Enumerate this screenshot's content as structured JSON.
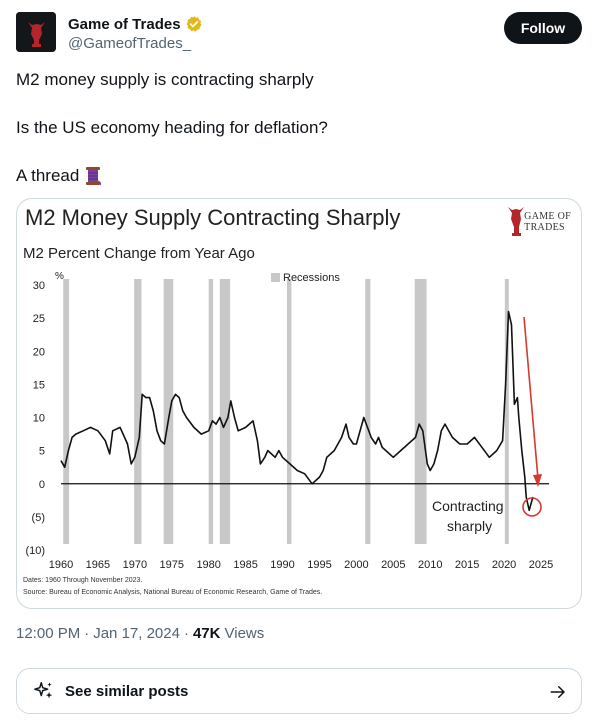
{
  "author": {
    "name": "Game of Trades",
    "handle": "@GameofTrades_",
    "verified": true,
    "follow_label": "Follow"
  },
  "tweet": {
    "line1": "M2 money supply is contracting sharply",
    "line2": "Is the US economy heading for deflation?",
    "line3": "A thread",
    "emoji": "thread-spool-icon"
  },
  "media": {
    "logo_line1": "GAME OF",
    "logo_line2": "TRADES",
    "footnote_dates": "Dates: 1960 Through November 2023.",
    "footnote_source": "Source: Bureau of Economic Analysis, National Bureau of Economic Research, Game of Trades."
  },
  "chart_data": {
    "type": "line",
    "title": "M2 Money Supply Contracting Sharply",
    "subtitle": "M2 Percent Change from Year Ago",
    "y_unit": "%",
    "ylim": [
      -10,
      30
    ],
    "xlim": [
      1960,
      2025
    ],
    "y_ticks": [
      "30",
      "25",
      "20",
      "15",
      "10",
      "5",
      "0",
      "(5)",
      "(10)"
    ],
    "y_tick_values": [
      30,
      25,
      20,
      15,
      10,
      5,
      0,
      -5,
      -10
    ],
    "x_ticks": [
      "1960",
      "1965",
      "1970",
      "1975",
      "1980",
      "1985",
      "1990",
      "1995",
      "2000",
      "2005",
      "2010",
      "2015",
      "2020",
      "2025"
    ],
    "legend": "Recessions",
    "annotation": [
      "Contracting",
      "sharply"
    ],
    "recessions": [
      [
        1960.3,
        1961.1
      ],
      [
        1969.9,
        1970.9
      ],
      [
        1973.9,
        1975.2
      ],
      [
        1980.0,
        1980.6
      ],
      [
        1981.5,
        1982.9
      ],
      [
        1990.6,
        1991.2
      ],
      [
        2001.2,
        2001.9
      ],
      [
        2007.9,
        2009.5
      ],
      [
        2020.1,
        2020.4
      ]
    ],
    "series": [
      {
        "values_x": [
          1960,
          1960.5,
          1961,
          1961.5,
          1962,
          1963,
          1964,
          1965,
          1966,
          1966.6,
          1967,
          1968,
          1969,
          1969.5,
          1970,
          1970.6,
          1971,
          1971.5,
          1972,
          1972.5,
          1973,
          1973.5,
          1974,
          1974.6,
          1975,
          1975.5,
          1976,
          1976.5,
          1977,
          1978,
          1979,
          1980,
          1980.5,
          1981,
          1981.5,
          1982,
          1982.6,
          1983,
          1983.5,
          1984,
          1985,
          1985.5,
          1986,
          1986.6,
          1987,
          1987.6,
          1988,
          1989,
          1989.5,
          1990,
          1991,
          1992,
          1993,
          1994,
          1995,
          1995.5,
          1996,
          1997,
          1998,
          1998.6,
          1999,
          1999.6,
          2000,
          2001,
          2001.5,
          2002,
          2002.6,
          2003,
          2003.5,
          2004,
          2005,
          2006,
          2007,
          2008,
          2008.5,
          2009,
          2009.6,
          2010,
          2010.5,
          2011,
          2011.5,
          2012,
          2013,
          2014,
          2015,
          2016,
          2017,
          2018,
          2019,
          2019.8,
          2020.2,
          2020.6,
          2021,
          2021.4,
          2021.8,
          2022,
          2022.4,
          2022.8,
          2023,
          2023.4,
          2023.9
        ],
        "values_y": [
          3.5,
          2.5,
          5,
          7,
          7.5,
          8,
          8.5,
          8,
          6.5,
          4.5,
          8,
          8.5,
          6,
          3,
          4,
          7,
          13.5,
          13,
          13,
          11,
          8,
          6.5,
          6,
          10,
          12.5,
          13.5,
          13,
          11,
          10,
          8.5,
          7.5,
          8,
          9.5,
          9,
          10,
          8.5,
          10,
          12.5,
          10,
          8,
          8.5,
          9,
          9.5,
          6.5,
          3,
          4,
          5,
          4,
          5,
          4,
          3,
          2,
          1.5,
          0,
          1,
          2,
          4,
          5,
          7,
          9,
          7,
          6,
          6,
          10,
          8.5,
          7,
          6,
          7,
          5.5,
          5,
          4,
          5,
          6,
          7,
          9,
          8,
          3,
          2,
          3,
          5,
          8,
          9,
          7,
          6,
          6,
          7,
          5.5,
          4,
          5,
          6.5,
          15,
          26,
          24,
          12,
          13,
          10,
          5,
          1,
          -2,
          -4,
          -2
        ]
      }
    ]
  },
  "post_meta": {
    "time": "12:00 PM",
    "separator": "·",
    "date": "Jan 17, 2024",
    "views_count": "47K",
    "views_label": "Views"
  },
  "similar_posts": {
    "label": "See similar posts",
    "icon": "sparkle-icon",
    "arrow": "arrow-right-icon"
  },
  "colors": {
    "recession": "#c8c8c8",
    "line": "#111111",
    "arrow": "#d63a2f",
    "verified": "#e2b719",
    "follow_bg": "#0f1419"
  }
}
